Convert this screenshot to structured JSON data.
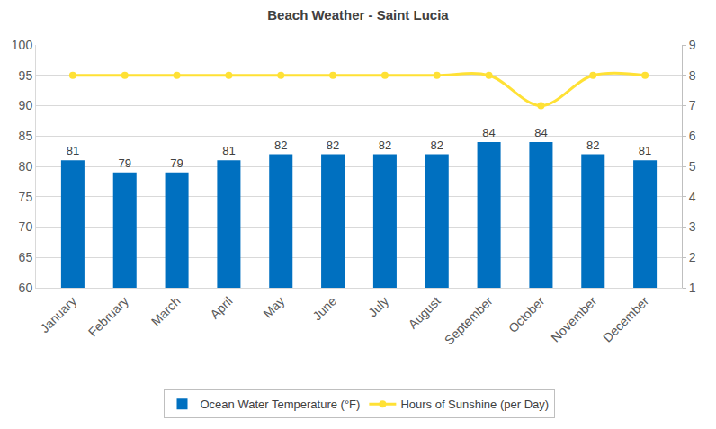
{
  "chart_data": {
    "type": "bar",
    "title": "Beach Weather - Saint Lucia",
    "categories": [
      "January",
      "February",
      "March",
      "April",
      "May",
      "June",
      "July",
      "August",
      "September",
      "October",
      "November",
      "December"
    ],
    "series": [
      {
        "name": "Ocean Water Temperature (°F)",
        "type": "bar",
        "color": "#0070c0",
        "values": [
          81,
          79,
          79,
          81,
          82,
          82,
          82,
          82,
          84,
          84,
          82,
          81
        ]
      },
      {
        "name": "Hours of Sunshine (per Day)",
        "type": "line",
        "color": "#ffe135",
        "axis": "y2",
        "marker": "circle",
        "line_style": "smooth",
        "values": [
          8,
          8,
          8,
          8,
          8,
          8,
          8,
          8,
          8,
          7,
          8,
          8
        ]
      }
    ],
    "ylim": [
      60,
      100
    ],
    "yticks": [
      60,
      65,
      70,
      75,
      80,
      85,
      90,
      95,
      100
    ],
    "y2lim": [
      1,
      9
    ],
    "y2ticks": [
      1,
      2,
      3,
      4,
      5,
      6,
      7,
      8,
      9
    ],
    "grid": true,
    "legend": "bottom",
    "data_labels": true
  }
}
